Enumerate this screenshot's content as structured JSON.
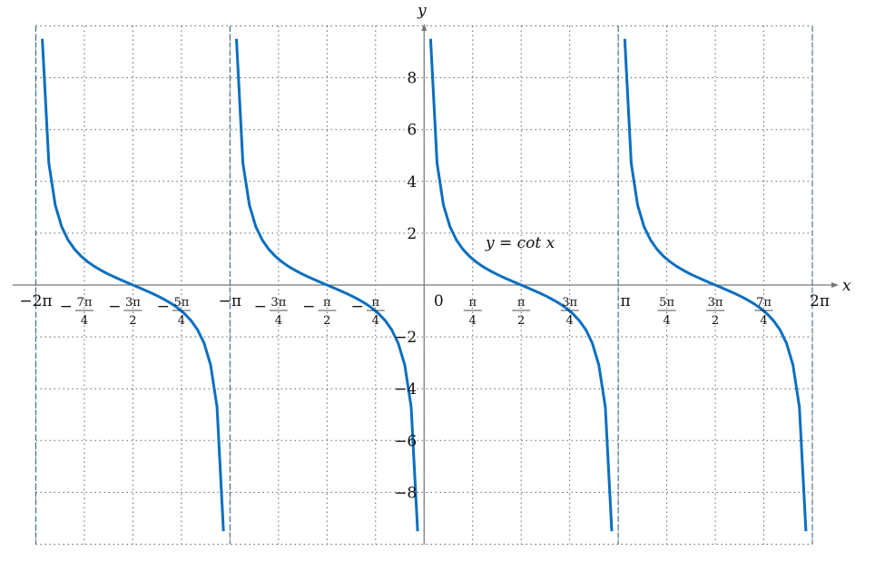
{
  "chart_data": {
    "type": "line",
    "title": "",
    "xlabel": "x",
    "ylabel": "y",
    "annotation": "y = cot x",
    "xlim": [
      -6.2832,
      6.2832
    ],
    "ylim": [
      -10,
      10
    ],
    "grid": true,
    "line_color": "#0b6fbf",
    "asymptote_color": "#1f5f8f",
    "asymptotes_multiples_of_pi": [
      -2,
      -1,
      1,
      2
    ],
    "sample_step_fraction_of_pi": 0.0333333,
    "series": [
      {
        "name": "cot x",
        "function": "cot",
        "y_clip": [
          -9.5,
          9.5
        ]
      }
    ],
    "x_ticks": [
      {
        "value": -6.2832,
        "sign": "−",
        "num": "2π",
        "den": ""
      },
      {
        "value": -5.4978,
        "sign": "−",
        "num": "7π",
        "den": "4"
      },
      {
        "value": -4.7124,
        "sign": "−",
        "num": "3π",
        "den": "2"
      },
      {
        "value": -3.927,
        "sign": "−",
        "num": "5π",
        "den": "4"
      },
      {
        "value": -3.1416,
        "sign": "−",
        "num": "π",
        "den": ""
      },
      {
        "value": -2.3562,
        "sign": "−",
        "num": "3π",
        "den": "4"
      },
      {
        "value": -1.5708,
        "sign": "−",
        "num": "π",
        "den": "2"
      },
      {
        "value": -0.7854,
        "sign": "−",
        "num": "π",
        "den": "4"
      },
      {
        "value": 0,
        "sign": "",
        "num": "0",
        "den": ""
      },
      {
        "value": 0.7854,
        "sign": "",
        "num": "π",
        "den": "4"
      },
      {
        "value": 1.5708,
        "sign": "",
        "num": "π",
        "den": "2"
      },
      {
        "value": 2.3562,
        "sign": "",
        "num": "3π",
        "den": "4"
      },
      {
        "value": 3.1416,
        "sign": "",
        "num": "π",
        "den": ""
      },
      {
        "value": 3.927,
        "sign": "",
        "num": "5π",
        "den": "4"
      },
      {
        "value": 4.7124,
        "sign": "",
        "num": "3π",
        "den": "2"
      },
      {
        "value": 5.4978,
        "sign": "",
        "num": "7π",
        "den": "4"
      },
      {
        "value": 6.2832,
        "sign": "",
        "num": "2π",
        "den": ""
      }
    ],
    "y_ticks": [
      {
        "value": 8,
        "label": "8"
      },
      {
        "value": 6,
        "label": "6"
      },
      {
        "value": 4,
        "label": "4"
      },
      {
        "value": 2,
        "label": "2"
      },
      {
        "value": -2,
        "label": "−2"
      },
      {
        "value": -4,
        "label": "−4"
      },
      {
        "value": -6,
        "label": "−6"
      },
      {
        "value": -8,
        "label": "−8"
      }
    ]
  }
}
